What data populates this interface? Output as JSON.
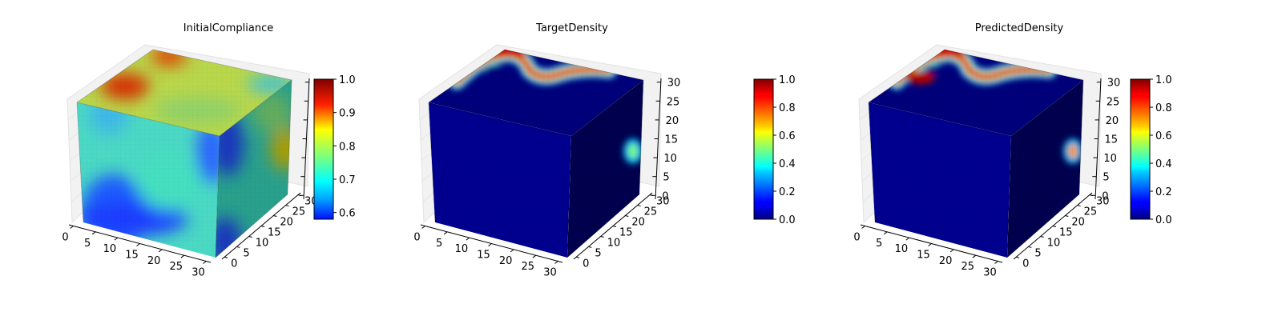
{
  "chart_data": [
    {
      "type": "voxel3d",
      "title": "InitialCompliance",
      "axes": {
        "x": {
          "ticks": [
            0,
            5,
            10,
            15,
            20,
            25,
            30
          ]
        },
        "y": {
          "ticks": [
            0,
            5,
            10,
            15,
            20,
            25,
            30
          ]
        },
        "z": {
          "ticks": [
            0,
            5,
            10,
            15,
            20,
            25,
            30
          ],
          "tick_labels_visible": false
        }
      },
      "grid": true,
      "colormap": "jet",
      "colorbar": {
        "min": 0.58,
        "max": 1.0,
        "ticks": [
          0.6,
          0.7,
          0.8,
          0.9,
          1.0
        ],
        "tick_labels": [
          "0.6",
          "0.7",
          "0.8",
          "0.9",
          "1.0"
        ]
      },
      "field": "smooth"
    },
    {
      "type": "voxel3d",
      "title": "TargetDensity",
      "axes": {
        "x": {
          "ticks": [
            0,
            5,
            10,
            15,
            20,
            25,
            30
          ]
        },
        "y": {
          "ticks": [
            0,
            5,
            10,
            15,
            20,
            25,
            30
          ]
        },
        "z": {
          "ticks": [
            0,
            5,
            10,
            15,
            20,
            25,
            30
          ],
          "tick_labels_visible": true
        }
      },
      "grid": true,
      "colormap": "jet",
      "colorbar": {
        "min": 0.0,
        "max": 1.0,
        "ticks": [
          0.0,
          0.2,
          0.4,
          0.6,
          0.8,
          1.0
        ],
        "tick_labels": [
          "0.0",
          "0.2",
          "0.4",
          "0.6",
          "0.8",
          "1.0"
        ]
      },
      "field": "sparse"
    },
    {
      "type": "voxel3d",
      "title": "PredictedDensity",
      "axes": {
        "x": {
          "ticks": [
            0,
            5,
            10,
            15,
            20,
            25,
            30
          ]
        },
        "y": {
          "ticks": [
            0,
            5,
            10,
            15,
            20,
            25,
            30
          ]
        },
        "z": {
          "ticks": [
            0,
            5,
            10,
            15,
            20,
            25,
            30
          ],
          "tick_labels_visible": true
        }
      },
      "grid": true,
      "colormap": "jet",
      "colorbar": {
        "min": 0.0,
        "max": 1.0,
        "ticks": [
          0.0,
          0.2,
          0.4,
          0.6,
          0.8,
          1.0
        ],
        "tick_labels": [
          "0.0",
          "0.2",
          "0.4",
          "0.6",
          "0.8",
          "1.0"
        ]
      },
      "field": "sparse"
    }
  ]
}
